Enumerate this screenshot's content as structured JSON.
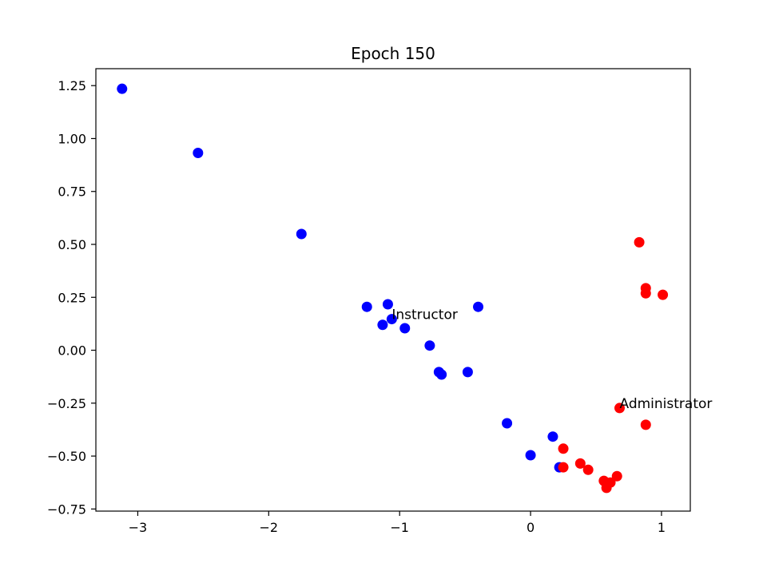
{
  "chart_data": {
    "type": "scatter",
    "title": "Epoch 150",
    "xlabel": "",
    "ylabel": "",
    "xlim": [
      -3.32,
      1.22
    ],
    "ylim": [
      -0.76,
      1.33
    ],
    "xticks": [
      -3,
      -2,
      -1,
      0,
      1
    ],
    "yticks": [
      -0.75,
      -0.5,
      -0.25,
      0.0,
      0.25,
      0.5,
      0.75,
      1.0,
      1.25
    ],
    "grid": false,
    "colors": {
      "blue": "#0000ff",
      "red": "#ff0000"
    },
    "series": [
      {
        "color": "blue",
        "points": [
          [
            -3.12,
            1.235
          ],
          [
            -2.54,
            0.932
          ],
          [
            -1.75,
            0.549
          ],
          [
            -1.25,
            0.205
          ],
          [
            -1.09,
            0.217
          ],
          [
            -1.06,
            0.147
          ],
          [
            -1.13,
            0.12
          ],
          [
            -0.96,
            0.104
          ],
          [
            -0.77,
            0.022
          ],
          [
            -0.7,
            -0.103
          ],
          [
            -0.68,
            -0.115
          ],
          [
            -0.48,
            -0.103
          ],
          [
            -0.4,
            0.205
          ],
          [
            -0.18,
            -0.345
          ],
          [
            0.0,
            -0.496
          ],
          [
            0.17,
            -0.408
          ],
          [
            0.22,
            -0.553
          ]
        ]
      },
      {
        "color": "red",
        "points": [
          [
            0.83,
            0.51
          ],
          [
            0.88,
            0.293
          ],
          [
            0.88,
            0.269
          ],
          [
            1.01,
            0.262
          ],
          [
            0.68,
            -0.273
          ],
          [
            0.88,
            -0.352
          ],
          [
            0.25,
            -0.465
          ],
          [
            0.25,
            -0.553
          ],
          [
            0.38,
            -0.535
          ],
          [
            0.44,
            -0.565
          ],
          [
            0.56,
            -0.617
          ],
          [
            0.58,
            -0.65
          ],
          [
            0.61,
            -0.625
          ],
          [
            0.66,
            -0.595
          ]
        ]
      }
    ],
    "annotations": [
      {
        "text": "Instructor",
        "x": -1.06,
        "y": 0.147
      },
      {
        "text": "Administrator",
        "x": 0.68,
        "y": -0.273
      }
    ]
  }
}
